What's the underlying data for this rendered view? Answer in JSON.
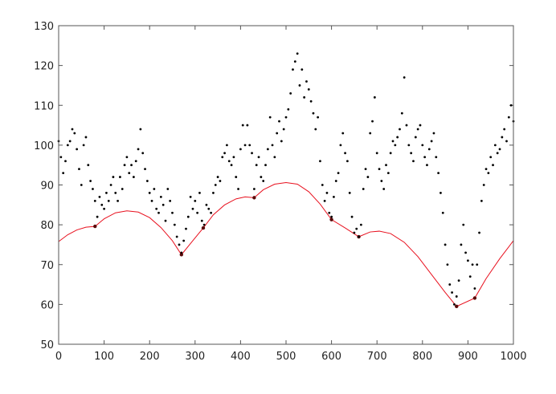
{
  "chart_data": {
    "type": "scatter",
    "title": "",
    "xlabel": "",
    "ylabel": "",
    "xlim": [
      0,
      1000
    ],
    "ylim": [
      50,
      130
    ],
    "xticks": [
      0,
      100,
      200,
      300,
      400,
      500,
      600,
      700,
      800,
      900,
      1000
    ],
    "yticks": [
      50,
      60,
      70,
      80,
      90,
      100,
      110,
      120,
      130
    ],
    "grid": false,
    "colors": {
      "points": "#000000",
      "curve": "#e8101e",
      "axes": "#555555"
    },
    "series": [
      {
        "type": "scatter",
        "x": [
          0,
          5,
          10,
          15,
          20,
          25,
          30,
          35,
          40,
          45,
          50,
          55,
          60,
          65,
          70,
          75,
          80,
          85,
          90,
          95,
          100,
          105,
          110,
          115,
          120,
          125,
          130,
          135,
          140,
          145,
          150,
          155,
          160,
          165,
          170,
          175,
          180,
          185,
          190,
          195,
          200,
          205,
          210,
          215,
          220,
          225,
          230,
          235,
          240,
          245,
          250,
          255,
          260,
          265,
          270,
          275,
          280,
          285,
          290,
          295,
          300,
          305,
          310,
          315,
          320,
          325,
          330,
          335,
          340,
          345,
          350,
          355,
          360,
          365,
          370,
          375,
          380,
          385,
          390,
          395,
          400,
          405,
          410,
          415,
          420,
          425,
          430,
          435,
          440,
          445,
          450,
          455,
          460,
          465,
          470,
          475,
          480,
          485,
          490,
          495,
          500,
          505,
          510,
          515,
          520,
          525,
          530,
          535,
          540,
          545,
          550,
          555,
          560,
          565,
          570,
          575,
          580,
          585,
          590,
          595,
          600,
          605,
          610,
          615,
          620,
          625,
          630,
          635,
          640,
          645,
          650,
          655,
          660,
          665,
          670,
          675,
          680,
          685,
          690,
          695,
          700,
          705,
          710,
          715,
          720,
          725,
          730,
          735,
          740,
          745,
          750,
          755,
          760,
          765,
          770,
          775,
          780,
          785,
          790,
          795,
          800,
          805,
          810,
          815,
          820,
          825,
          830,
          835,
          840,
          845,
          850,
          855,
          860,
          865,
          870,
          875,
          880,
          885,
          890,
          895,
          900,
          905,
          910,
          915,
          920,
          925,
          930,
          935,
          940,
          945,
          950,
          955,
          960,
          965,
          970,
          975,
          980,
          985,
          990,
          995,
          1000
        ],
        "y": [
          101,
          97,
          93,
          96,
          100,
          101,
          104,
          103,
          99,
          94,
          90,
          100,
          102,
          95,
          91,
          89,
          86,
          82,
          87,
          85,
          84,
          88,
          86,
          90,
          92,
          88,
          86,
          92,
          89,
          95,
          97,
          93,
          95,
          92,
          96,
          99,
          104,
          98,
          94,
          91,
          88,
          86,
          89,
          84,
          83,
          87,
          85,
          81,
          89,
          86,
          83,
          80,
          77,
          75,
          73,
          76,
          79,
          82,
          87,
          84,
          86,
          83,
          88,
          81,
          80,
          85,
          84,
          83,
          88,
          90,
          92,
          91,
          97,
          98,
          100,
          96,
          95,
          97,
          92,
          89,
          99,
          105,
          100,
          105,
          100,
          98,
          89,
          95,
          97,
          92,
          91,
          95,
          99,
          107,
          100,
          97,
          103,
          106,
          101,
          104,
          107,
          109,
          113,
          119,
          121,
          123,
          115,
          119,
          112,
          116,
          114,
          111,
          108,
          104,
          107,
          96,
          90,
          86,
          88,
          83,
          82,
          87,
          91,
          93,
          100,
          103,
          98,
          96,
          88,
          82,
          78,
          79,
          77,
          80,
          89,
          94,
          92,
          103,
          106,
          112,
          98,
          94,
          91,
          89,
          95,
          93,
          98,
          101,
          100,
          102,
          104,
          108,
          117,
          105,
          100,
          98,
          96,
          102,
          104,
          105,
          100,
          97,
          95,
          99,
          101,
          103,
          97,
          93,
          88,
          83,
          75,
          70,
          65,
          63,
          60,
          62,
          66,
          75,
          80,
          73,
          71,
          67,
          70,
          64,
          70,
          78,
          86,
          90,
          94,
          93,
          97,
          95,
          100,
          98,
          99,
          102,
          104,
          101,
          107,
          110,
          106
        ]
      },
      {
        "type": "line",
        "x": [
          0,
          20,
          40,
          60,
          80,
          100,
          125,
          150,
          175,
          200,
          225,
          250,
          270,
          295,
          318,
          340,
          365,
          390,
          410,
          430,
          450,
          475,
          500,
          525,
          550,
          575,
          600,
          630,
          660,
          685,
          705,
          730,
          760,
          790,
          820,
          850,
          875,
          915,
          940,
          970,
          1000
        ],
        "y": [
          75.8,
          77.5,
          78.7,
          79.4,
          79.6,
          81.5,
          83,
          83.5,
          83.2,
          81.8,
          79.3,
          76,
          72.5,
          76,
          79.2,
          82.5,
          85,
          86.5,
          87,
          86.8,
          88.8,
          90.2,
          90.6,
          90.2,
          88.3,
          85.2,
          81.3,
          79.2,
          77,
          78.2,
          78.4,
          77.8,
          75.6,
          72,
          67.5,
          63,
          59.5,
          61.6,
          66.5,
          71.5,
          76
        ],
        "markers_x": [
          80,
          270,
          318,
          430,
          600,
          660,
          875,
          915
        ],
        "markers_y": [
          79.6,
          72.5,
          79.2,
          86.8,
          81.3,
          77,
          59.5,
          61.6
        ]
      }
    ]
  }
}
